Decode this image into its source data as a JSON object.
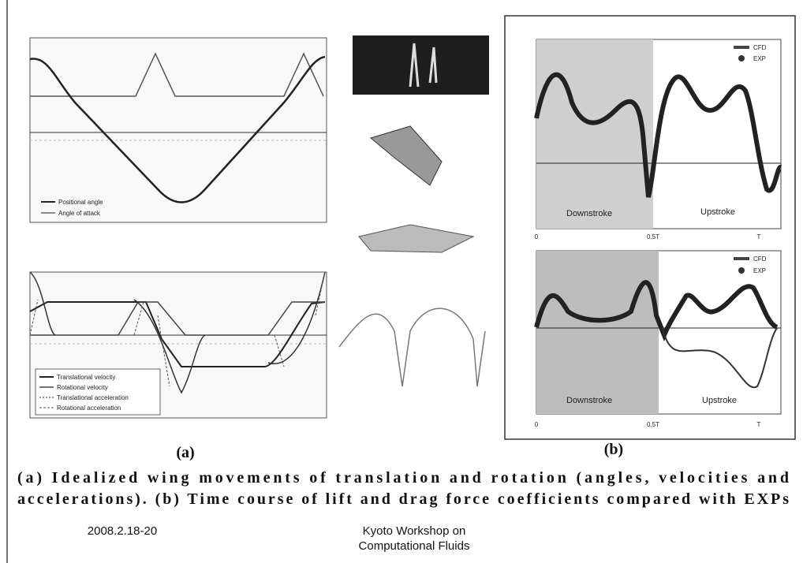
{
  "panel_a": {
    "label": "(a)",
    "top_legend": [
      "Positional angle",
      "Angle of attack"
    ],
    "bottom_legend": [
      "Translational velocity",
      "Rotational velocity",
      "Translational acceleration",
      "Rotational acceleration"
    ]
  },
  "panel_b": {
    "label": "(b)",
    "lift": {
      "legend": [
        "CFD",
        "EXP"
      ],
      "regions": [
        "Downstroke",
        "Upstroke"
      ],
      "x_labels": [
        "0",
        "0.5T",
        "T"
      ]
    },
    "drag": {
      "legend": [
        "CFD",
        "EXP"
      ],
      "regions": [
        "Downstroke",
        "Upstroke"
      ],
      "x_labels": [
        "0",
        "0.5T",
        "T"
      ]
    }
  },
  "caption": [
    "(a) Idealized wing movements of translation and rotation (angles, velocities and",
    "accelerations). (b) Time course of lift and drag force coefficients compared with EXPs"
  ],
  "footer": {
    "date": "2008.2.18-20",
    "venue": [
      "Kyoto Workshop on",
      "Computational Fluids"
    ]
  }
}
